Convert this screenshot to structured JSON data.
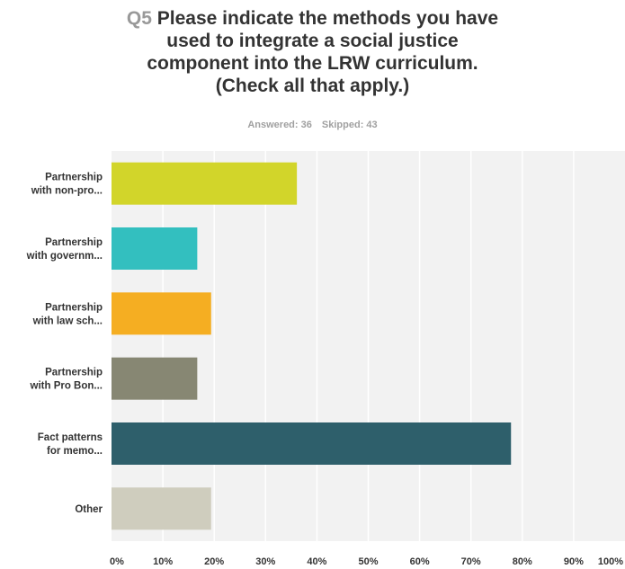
{
  "title": {
    "qnum": "Q5",
    "lines": [
      "Please indicate the methods you have",
      "used to integrate a social justice",
      "component into the LRW curriculum.",
      "(Check all that apply.)"
    ]
  },
  "stats": {
    "answered": "Answered: 36",
    "skipped": "Skipped: 43"
  },
  "chart_data": {
    "type": "bar",
    "orientation": "horizontal",
    "categories": [
      [
        "Partnership",
        "with non-pro..."
      ],
      [
        "Partnership",
        "with governm..."
      ],
      [
        "Partnership",
        "with law sch..."
      ],
      [
        "Partnership",
        "with Pro Bon..."
      ],
      [
        "Fact patterns",
        "for memo..."
      ],
      [
        "Other"
      ]
    ],
    "values": [
      36.1,
      16.7,
      19.4,
      16.7,
      77.8,
      19.4
    ],
    "colors": [
      "#d2d52a",
      "#33bfbf",
      "#f5ae22",
      "#878773",
      "#2e5f6b",
      "#cfcdbe"
    ],
    "xlim": [
      0,
      100
    ],
    "ticks": [
      "0%",
      "10%",
      "20%",
      "30%",
      "40%",
      "50%",
      "60%",
      "70%",
      "80%",
      "90%",
      "100%"
    ],
    "grid": true,
    "background": "#f2f2f2",
    "gridline_color": "#ffffff"
  }
}
